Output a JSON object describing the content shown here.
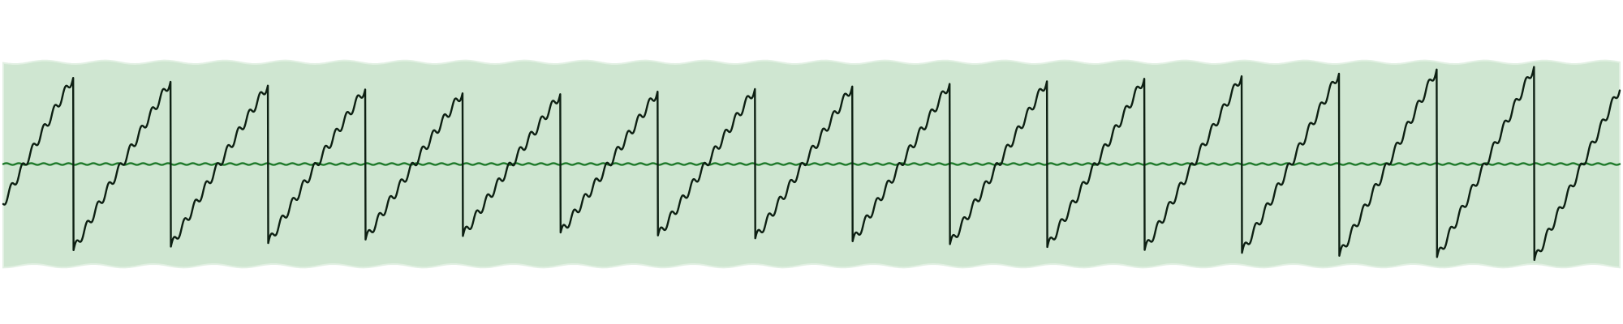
{
  "chart_data": {
    "type": "line",
    "title": "",
    "xlabel": "",
    "ylabel": "",
    "grid": false,
    "legend": "none",
    "colors": {
      "background": "#ffffff",
      "band_fill": "#cfe6d1",
      "band_edge": "#e2f0e3",
      "signal": "#0d1f12",
      "midline": "#1f7a2b"
    },
    "x_range": [
      0,
      100
    ],
    "y_range": [
      -1.15,
      1.15
    ],
    "band_range": [
      -1.0,
      1.0
    ],
    "sawtooth": {
      "cycle_count": 16.6,
      "start_phase": 0.28,
      "amplitude_start": 0.88,
      "amplitude_min": 0.68,
      "amplitude_end": 0.98,
      "amplitude_min_at": 0.33,
      "ripple_amplitude": 0.045,
      "ripple_frequency": 9
    },
    "midline": {
      "level": 0.0,
      "ripple_amplitude": 0.008,
      "ripple_frequency": 130
    }
  }
}
